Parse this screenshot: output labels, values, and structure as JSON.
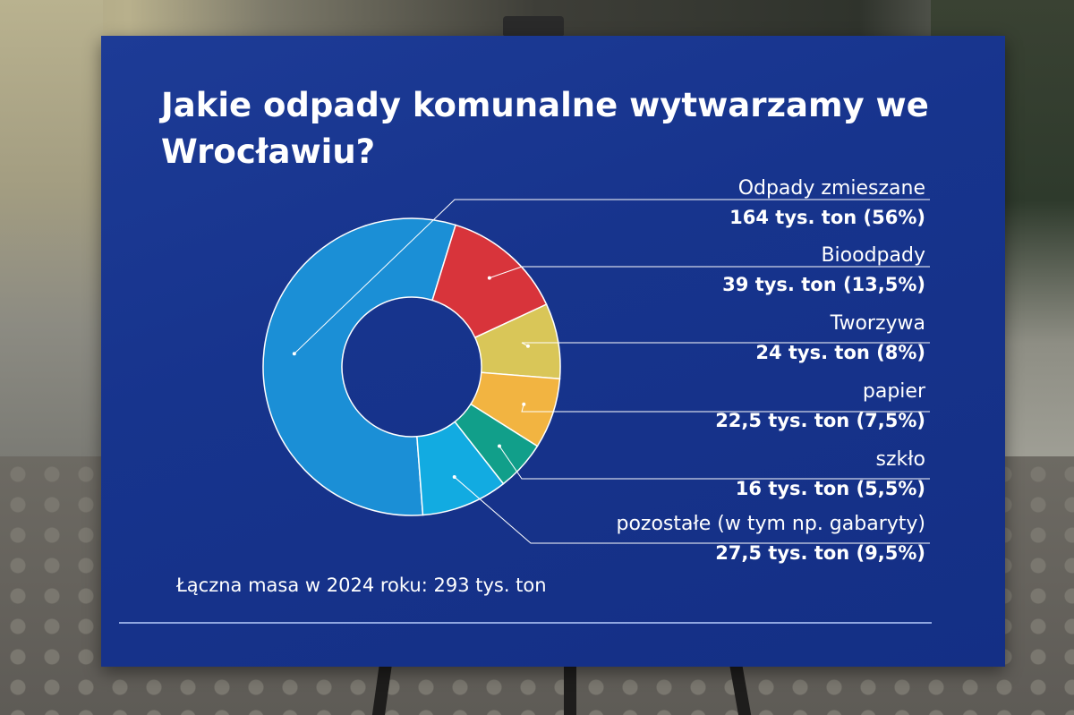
{
  "board": {
    "title": "Jakie odpady komunalne wytwarzamy we Wrocławiu?",
    "total_label": "Łączna masa w 2024 roku: 293 tys. ton"
  },
  "chart_data": {
    "type": "pie",
    "donut": true,
    "title": "Jakie odpady komunalne wytwarzamy we Wrocławiu?",
    "unit": "tys. ton",
    "total": 293,
    "slices": [
      {
        "name": "Odpady zmieszane",
        "value": 164,
        "percent": 56,
        "value_label": "164 tys. ton (56%)",
        "color": "#1b8fd6"
      },
      {
        "name": "Bioodpady",
        "value": 39,
        "percent": 13.5,
        "value_label": "39 tys. ton (13,5%)",
        "color": "#d8343b"
      },
      {
        "name": "Tworzywa",
        "value": 24,
        "percent": 8,
        "value_label": "24 tys. ton (8%)",
        "color": "#d9c658"
      },
      {
        "name": "papier",
        "value": 22.5,
        "percent": 7.5,
        "value_label": "22,5 tys. ton (7,5%)",
        "color": "#f2b441"
      },
      {
        "name": "szkło",
        "value": 16,
        "percent": 5.5,
        "value_label": "16 tys. ton (5,5%)",
        "color": "#119f8a"
      },
      {
        "name": "pozostałe (w tym np. gabaryty)",
        "value": 27.5,
        "percent": 9.5,
        "value_label": "27,5 tys. ton (9,5%)",
        "color": "#12abe1"
      }
    ]
  }
}
